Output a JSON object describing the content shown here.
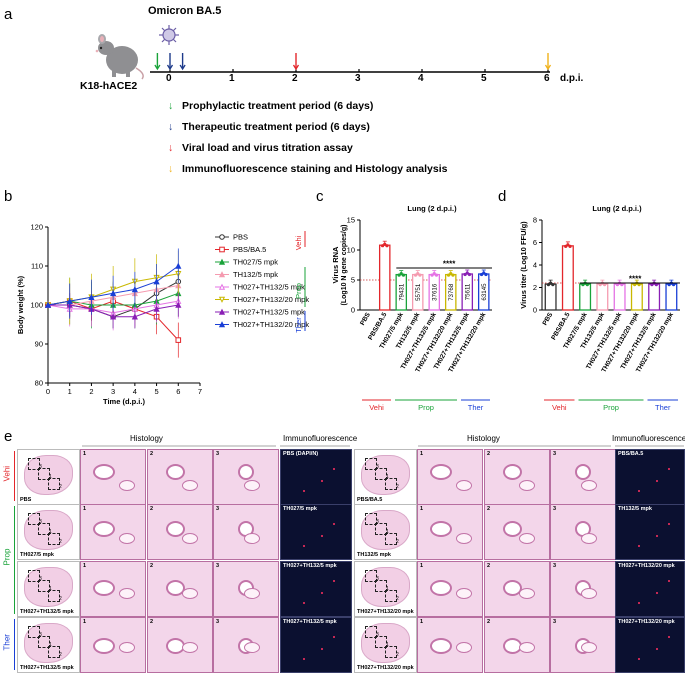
{
  "panel_a": {
    "letter": "a",
    "virus_label": "Omicron BA.5",
    "mouse_label": "K18-hACE2",
    "timeline_ticks": [
      "0",
      "1",
      "2",
      "3",
      "4",
      "5",
      "6"
    ],
    "axis_unit": "d.p.i.",
    "legend": [
      {
        "arrow": "↓",
        "color": "#1aa33a",
        "text": "Prophylactic treatment period (6 days)"
      },
      {
        "arrow": "↓",
        "color": "#1d3a8a",
        "text": "Therapeutic treatment period (6 days)"
      },
      {
        "arrow": "↓",
        "color": "#e3262b",
        "text": "Viral load and virus titration assay"
      },
      {
        "arrow": "↓",
        "color": "#f1b21a",
        "text": "Immunofluorescence staining and Histology analysis"
      }
    ]
  },
  "panel_b": {
    "letter": "b",
    "groups": [
      "Vehi",
      "Prop",
      "Ther"
    ]
  },
  "panel_c": {
    "letter": "c"
  },
  "panel_d": {
    "letter": "d"
  },
  "panel_e": {
    "letter": "e",
    "headers": {
      "histology_left": "Histology",
      "if_left": "Immunofluorescence",
      "histology_right": "Histology",
      "if_right": "Immunofluorescence"
    },
    "row_groups": [
      "Vehi",
      "Prop",
      "Ther"
    ],
    "left_rows": [
      {
        "lung": "PBS",
        "if": "PBS (DAPI/N)"
      },
      {
        "lung": "TH027/5 mpk",
        "if": "TH027/5 mpk"
      },
      {
        "lung": "TH027+TH132/5 mpk",
        "if": "TH027+TH132/5 mpk"
      },
      {
        "lung": "TH027+TH132/5 mpk",
        "if": "TH027+TH132/5 mpk"
      }
    ],
    "right_rows": [
      {
        "lung": "PBS/BA.5",
        "if": "PBS/BA.5"
      },
      {
        "lung": "TH132/5 mpk",
        "if": "TH132/5 mpk"
      },
      {
        "lung": "TH027+TH132/20 mpk",
        "if": "TH027+TH132/20 mpk"
      },
      {
        "lung": "TH027+TH132/20 mpk",
        "if": "TH027+TH132/20 mpk"
      }
    ],
    "zoom_labels": [
      "1",
      "2",
      "3"
    ]
  },
  "chart_data": [
    {
      "type": "line",
      "title": "",
      "xlabel": "Time (d.p.i.)",
      "ylabel": "Body weight (%)",
      "xlim": [
        0,
        7
      ],
      "ylim": [
        80,
        120
      ],
      "xticks": [
        0,
        1,
        2,
        3,
        4,
        5,
        6,
        7
      ],
      "yticks": [
        80,
        90,
        100,
        110,
        120
      ],
      "legend_placement": "right",
      "x": [
        0,
        1,
        2,
        3,
        4,
        5,
        6
      ],
      "series": [
        {
          "name": "PBS",
          "color": "#333333",
          "marker": "circle-open",
          "values": [
            100,
            100,
            99,
            97,
            99,
            103,
            106
          ]
        },
        {
          "name": "PBS/BA.5",
          "color": "#e3262b",
          "marker": "square-open",
          "values": [
            100,
            101,
            99,
            101,
            99,
            97,
            91
          ]
        },
        {
          "name": "TH027/5 mpk",
          "color": "#1aa33a",
          "marker": "triangle",
          "values": [
            100,
            101,
            100,
            100,
            100,
            101,
            103
          ]
        },
        {
          "name": "TH132/5 mpk",
          "color": "#f59bb0",
          "marker": "triangle",
          "values": [
            100,
            100,
            101,
            102,
            103,
            104,
            105
          ]
        },
        {
          "name": "TH027+TH132/5 mpk",
          "color": "#e573e5",
          "marker": "triangle-open",
          "values": [
            100,
            99,
            99,
            98,
            99,
            100,
            101
          ]
        },
        {
          "name": "TH027+TH132/20 mpk",
          "color": "#c9b800",
          "marker": "triangle-down-open",
          "values": [
            100,
            101,
            102,
            104,
            106,
            107,
            108
          ]
        },
        {
          "name": "TH027+TH132/5 mpk",
          "color": "#8a1fb5",
          "marker": "triangle",
          "values": [
            100,
            100,
            99,
            97,
            97,
            99,
            100
          ]
        },
        {
          "name": "TH027+TH132/20 mpk",
          "color": "#1a3fd6",
          "marker": "triangle",
          "values": [
            100,
            101,
            102,
            103,
            104,
            106,
            110
          ]
        }
      ]
    },
    {
      "type": "bar",
      "title": "Lung (2 d.p.i.)",
      "ylabel": "Virus RNA",
      "ylabel2": "(Log10 N gene copies/g)",
      "ylim": [
        0,
        15
      ],
      "yticks": [
        0,
        5,
        10,
        15
      ],
      "dotted_line": 5.0,
      "significance": "****",
      "categories": [
        "PBS",
        "PBS/BA.5",
        "TH027/5 mpk",
        "TH132/5 mpk",
        "TH027+TH132/5 mpk",
        "TH027+TH132/20 mpk",
        "TH027+TH132/5 mpk",
        "TH027+TH132/20 mpk"
      ],
      "values": [
        0,
        10.8,
        5.9,
        5.9,
        5.9,
        5.9,
        6.0,
        6.0
      ],
      "colors": [
        "#333333",
        "#e3262b",
        "#1aa33a",
        "#f59bb0",
        "#e573e5",
        "#c9b800",
        "#8a1fb5",
        "#1a3fd6"
      ],
      "bar_labels": [
        "",
        "",
        "79431",
        "55751",
        "37616",
        "73768",
        "75611",
        "63145"
      ],
      "groups": [
        {
          "label": "Vehi",
          "color": "#e3262b"
        },
        {
          "label": "Prop",
          "color": "#1aa33a"
        },
        {
          "label": "Ther",
          "color": "#1a3fd6"
        }
      ]
    },
    {
      "type": "bar",
      "title": "Lung (2 d.p.i.)",
      "ylabel": "Virus titer (Log10 FFU/g)",
      "ylim": [
        0,
        8
      ],
      "yticks": [
        0,
        2,
        4,
        6,
        8
      ],
      "dotted_line": 2.4,
      "significance": "****",
      "categories": [
        "PBS",
        "PBS/BA.5",
        "TH027/5 mpk",
        "TH132/5 mpk",
        "TH027+TH132/5 mpk",
        "TH027+TH132/20 mpk",
        "TH027+TH132/5 mpk",
        "TH027+TH132/20 mpk"
      ],
      "values": [
        2.3,
        5.7,
        2.3,
        2.3,
        2.3,
        2.3,
        2.3,
        2.3
      ],
      "colors": [
        "#333333",
        "#e3262b",
        "#1aa33a",
        "#f59bb0",
        "#e573e5",
        "#c9b800",
        "#8a1fb5",
        "#1a3fd6"
      ],
      "groups": [
        {
          "label": "Vehi",
          "color": "#e3262b"
        },
        {
          "label": "Prop",
          "color": "#1aa33a"
        },
        {
          "label": "Ther",
          "color": "#1a3fd6"
        }
      ]
    }
  ]
}
